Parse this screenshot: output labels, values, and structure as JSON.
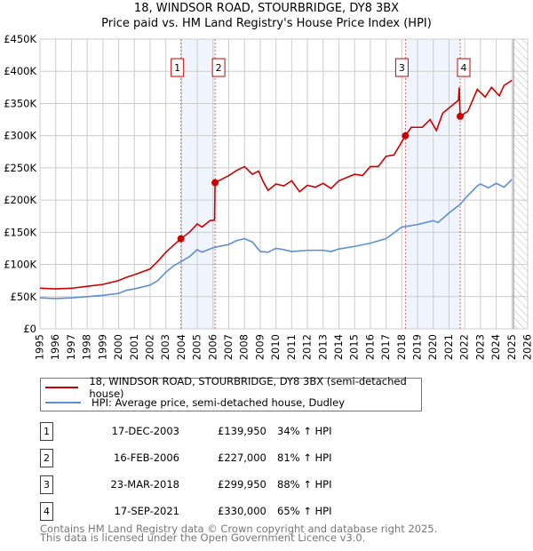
{
  "chart_data": {
    "type": "line",
    "title": "18, WINDSOR ROAD, STOURBRIDGE, DY8 3BX",
    "subtitle": "Price paid vs. HM Land Registry's House Price Index (HPI)",
    "xlim": [
      1995,
      2026
    ],
    "ylim": [
      0,
      450000
    ],
    "x_ticks": [
      "1995",
      "1996",
      "1997",
      "1998",
      "1999",
      "2000",
      "2001",
      "2002",
      "2003",
      "2004",
      "2005",
      "2006",
      "2007",
      "2008",
      "2009",
      "2010",
      "2011",
      "2012",
      "2013",
      "2014",
      "2015",
      "2016",
      "2017",
      "2018",
      "2019",
      "2020",
      "2021",
      "2022",
      "2023",
      "2024",
      "2025",
      "2026"
    ],
    "y_ticks": [
      {
        "v": 0,
        "label": "£0"
      },
      {
        "v": 50000,
        "label": "£50K"
      },
      {
        "v": 100000,
        "label": "£100K"
      },
      {
        "v": 150000,
        "label": "£150K"
      },
      {
        "v": 200000,
        "label": "£200K"
      },
      {
        "v": 250000,
        "label": "£250K"
      },
      {
        "v": 300000,
        "label": "£300K"
      },
      {
        "v": 350000,
        "label": "£350K"
      },
      {
        "v": 400000,
        "label": "£400K"
      },
      {
        "v": 450000,
        "label": "£450K"
      }
    ],
    "grid": true,
    "forecast_hatch_from": 2025.1,
    "shaded_ranges": [
      [
        2003.96,
        2006.13
      ],
      [
        2018.23,
        2021.71
      ]
    ],
    "series": [
      {
        "name": "18, WINDSOR ROAD, STOURBRIDGE, DY8 3BX (semi-detached house)",
        "color": "#cc0000",
        "points": [
          [
            1995,
            63
          ],
          [
            1996,
            62
          ],
          [
            1997,
            63
          ],
          [
            1998,
            66
          ],
          [
            1999,
            69
          ],
          [
            2000,
            75
          ],
          [
            2000.5,
            80
          ],
          [
            2001,
            84
          ],
          [
            2002,
            93
          ],
          [
            2002.5,
            105
          ],
          [
            2003,
            119
          ],
          [
            2003.5,
            130
          ],
          [
            2003.96,
            139.95
          ],
          [
            2004.5,
            150
          ],
          [
            2005,
            163
          ],
          [
            2005.3,
            158
          ],
          [
            2005.8,
            168
          ],
          [
            2006.1,
            169
          ],
          [
            2006.13,
            227
          ],
          [
            2007,
            238
          ],
          [
            2007.5,
            246
          ],
          [
            2008,
            252
          ],
          [
            2008.5,
            240
          ],
          [
            2008.9,
            245
          ],
          [
            2009.2,
            228
          ],
          [
            2009.5,
            215
          ],
          [
            2010,
            225
          ],
          [
            2010.5,
            222
          ],
          [
            2011,
            230
          ],
          [
            2011.5,
            213
          ],
          [
            2012,
            223
          ],
          [
            2012.5,
            220
          ],
          [
            2013,
            226
          ],
          [
            2013.5,
            218
          ],
          [
            2014,
            230
          ],
          [
            2015,
            240
          ],
          [
            2015.5,
            238
          ],
          [
            2016,
            252
          ],
          [
            2016.5,
            252
          ],
          [
            2017,
            268
          ],
          [
            2017.5,
            270
          ],
          [
            2018.23,
            299.95
          ],
          [
            2018.6,
            313
          ],
          [
            2019.3,
            313
          ],
          [
            2019.8,
            325
          ],
          [
            2020.2,
            308
          ],
          [
            2020.6,
            335
          ],
          [
            2021,
            343
          ],
          [
            2021.6,
            355
          ],
          [
            2021.65,
            375
          ],
          [
            2021.71,
            330
          ],
          [
            2022.2,
            338
          ],
          [
            2022.8,
            372
          ],
          [
            2023.3,
            360
          ],
          [
            2023.7,
            375
          ],
          [
            2024.2,
            362
          ],
          [
            2024.5,
            378
          ],
          [
            2025,
            386
          ]
        ]
      },
      {
        "name": "HPI: Average price, semi-detached house, Dudley",
        "color": "#5b8fd4",
        "points": [
          [
            1995,
            48
          ],
          [
            1996,
            47
          ],
          [
            1997,
            48
          ],
          [
            1998,
            50
          ],
          [
            1999,
            52
          ],
          [
            2000,
            55
          ],
          [
            2000.5,
            60
          ],
          [
            2001,
            62
          ],
          [
            2002,
            68
          ],
          [
            2002.5,
            75
          ],
          [
            2003,
            88
          ],
          [
            2003.5,
            98
          ],
          [
            2004,
            105
          ],
          [
            2004.5,
            112
          ],
          [
            2005,
            123
          ],
          [
            2005.3,
            119
          ],
          [
            2006,
            126
          ],
          [
            2007,
            131
          ],
          [
            2007.5,
            137
          ],
          [
            2008,
            140
          ],
          [
            2008.5,
            135
          ],
          [
            2009,
            120
          ],
          [
            2009.5,
            119
          ],
          [
            2010,
            125
          ],
          [
            2010.5,
            123
          ],
          [
            2011,
            120
          ],
          [
            2012,
            122
          ],
          [
            2013,
            122
          ],
          [
            2013.5,
            120
          ],
          [
            2014,
            124
          ],
          [
            2015,
            128
          ],
          [
            2016,
            133
          ],
          [
            2017,
            140
          ],
          [
            2018,
            158
          ],
          [
            2019,
            162
          ],
          [
            2020,
            168
          ],
          [
            2020.3,
            165
          ],
          [
            2021,
            180
          ],
          [
            2021.7,
            193
          ],
          [
            2022,
            202
          ],
          [
            2022.8,
            222
          ],
          [
            2023,
            225
          ],
          [
            2023.5,
            219
          ],
          [
            2024,
            226
          ],
          [
            2024.5,
            220
          ],
          [
            2025,
            232
          ]
        ]
      }
    ],
    "sales": [
      {
        "num": "1",
        "x": 2003.96,
        "value": 139.95,
        "date": "17-DEC-2003",
        "price": "£139,950",
        "pct": "34% ↑ HPI"
      },
      {
        "num": "2",
        "x": 2006.13,
        "value": 227,
        "date": "16-FEB-2006",
        "price": "£227,000",
        "pct": "81% ↑ HPI"
      },
      {
        "num": "3",
        "x": 2018.23,
        "value": 299.95,
        "date": "23-MAR-2018",
        "price": "£299,950",
        "pct": "88% ↑ HPI"
      },
      {
        "num": "4",
        "x": 2021.71,
        "value": 330,
        "date": "17-SEP-2021",
        "price": "£330,000",
        "pct": "65% ↑ HPI"
      }
    ]
  },
  "footer": {
    "line1": "Contains HM Land Registry data © Crown copyright and database right 2025.",
    "line2": "This data is licensed under the Open Government Licence v3.0."
  }
}
